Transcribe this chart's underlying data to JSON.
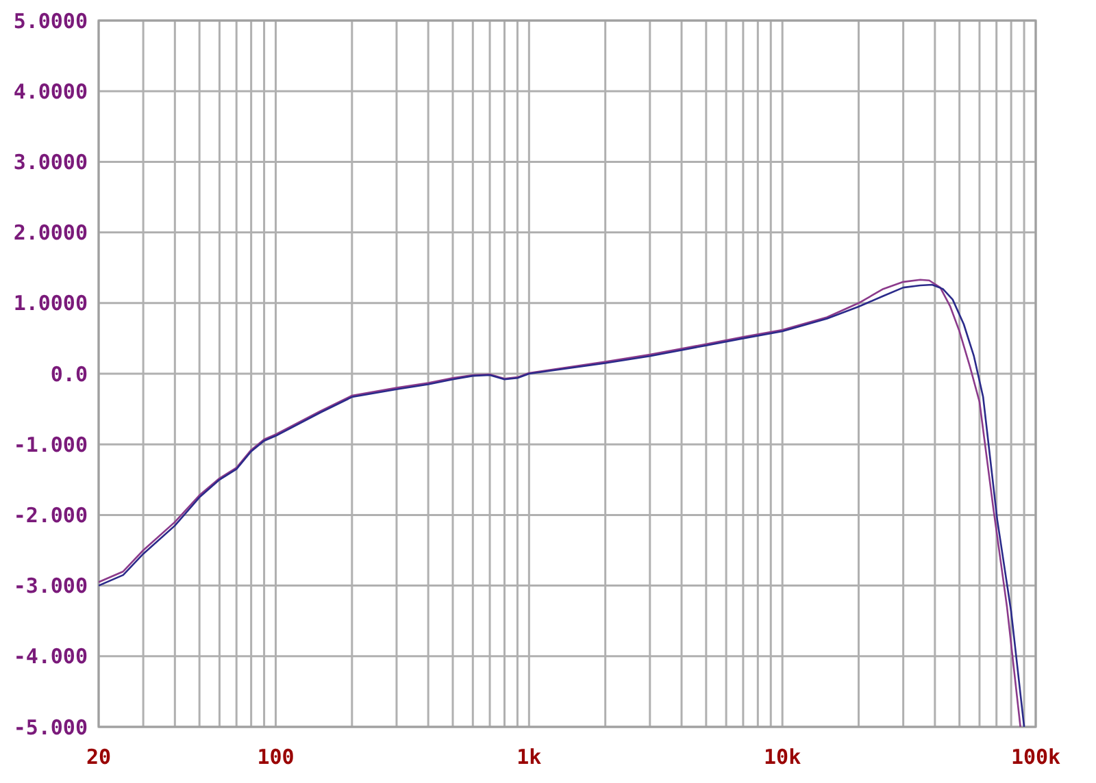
{
  "chart_data": {
    "type": "line",
    "log": "x",
    "grid": true,
    "xlim": [
      20,
      100000
    ],
    "ylim": [
      -5,
      5
    ],
    "xticks": [
      {
        "value": 20,
        "label": "20"
      },
      {
        "value": 30,
        "label": null
      },
      {
        "value": 40,
        "label": null
      },
      {
        "value": 50,
        "label": null
      },
      {
        "value": 60,
        "label": null
      },
      {
        "value": 70,
        "label": null
      },
      {
        "value": 80,
        "label": null
      },
      {
        "value": 90,
        "label": null
      },
      {
        "value": 100,
        "label": "100"
      },
      {
        "value": 200,
        "label": null
      },
      {
        "value": 300,
        "label": null
      },
      {
        "value": 400,
        "label": null
      },
      {
        "value": 500,
        "label": null
      },
      {
        "value": 600,
        "label": null
      },
      {
        "value": 700,
        "label": null
      },
      {
        "value": 800,
        "label": null
      },
      {
        "value": 900,
        "label": null
      },
      {
        "value": 1000,
        "label": "1k"
      },
      {
        "value": 2000,
        "label": null
      },
      {
        "value": 3000,
        "label": null
      },
      {
        "value": 4000,
        "label": null
      },
      {
        "value": 5000,
        "label": null
      },
      {
        "value": 6000,
        "label": null
      },
      {
        "value": 7000,
        "label": null
      },
      {
        "value": 8000,
        "label": null
      },
      {
        "value": 9000,
        "label": null
      },
      {
        "value": 10000,
        "label": "10k"
      },
      {
        "value": 20000,
        "label": null
      },
      {
        "value": 30000,
        "label": null
      },
      {
        "value": 40000,
        "label": null
      },
      {
        "value": 50000,
        "label": null
      },
      {
        "value": 60000,
        "label": null
      },
      {
        "value": 70000,
        "label": null
      },
      {
        "value": 80000,
        "label": null
      },
      {
        "value": 90000,
        "label": null
      },
      {
        "value": 100000,
        "label": "100k"
      }
    ],
    "yticks": [
      {
        "value": 5,
        "label": "5.0000"
      },
      {
        "value": 4,
        "label": "4.0000"
      },
      {
        "value": 3,
        "label": "3.0000"
      },
      {
        "value": 2,
        "label": "2.0000"
      },
      {
        "value": 1,
        "label": "1.0000"
      },
      {
        "value": 0,
        "label": "0.0"
      },
      {
        "value": -1,
        "label": "-1.000"
      },
      {
        "value": -2,
        "label": "-2.000"
      },
      {
        "value": -3,
        "label": "-3.000"
      },
      {
        "value": -4,
        "label": "-4.000"
      },
      {
        "value": -5,
        "label": "-5.000"
      }
    ],
    "series": [
      {
        "color": "#8b3a8b",
        "x": [
          20,
          25,
          30,
          40,
          50,
          60,
          70,
          80,
          90,
          100,
          150,
          200,
          300,
          400,
          500,
          600,
          700,
          800,
          900,
          1000,
          2000,
          3000,
          5000,
          7000,
          10000,
          15000,
          20000,
          25000,
          30000,
          35000,
          38000,
          42000,
          46000,
          50000,
          55000,
          60000,
          68000,
          77000,
          87000
        ],
        "values": [
          -2.95,
          -2.8,
          -2.5,
          -2.1,
          -1.72,
          -1.48,
          -1.33,
          -1.08,
          -0.93,
          -0.86,
          -0.53,
          -0.31,
          -0.2,
          -0.13,
          -0.06,
          -0.02,
          -0.01,
          -0.07,
          -0.05,
          0.01,
          0.17,
          0.27,
          0.42,
          0.52,
          0.62,
          0.8,
          1.0,
          1.2,
          1.3,
          1.33,
          1.32,
          1.22,
          0.95,
          0.6,
          0.1,
          -0.4,
          -1.9,
          -3.3,
          -5.0
        ]
      },
      {
        "color": "#2a2a8a",
        "x": [
          20,
          25,
          30,
          40,
          50,
          60,
          70,
          80,
          90,
          100,
          150,
          200,
          300,
          400,
          500,
          600,
          700,
          800,
          900,
          1000,
          2000,
          3000,
          5000,
          7000,
          10000,
          15000,
          20000,
          25000,
          30000,
          35000,
          39000,
          43000,
          47000,
          52000,
          57000,
          62000,
          70500,
          80000,
          90000
        ],
        "values": [
          -3.0,
          -2.85,
          -2.55,
          -2.15,
          -1.75,
          -1.5,
          -1.35,
          -1.1,
          -0.95,
          -0.88,
          -0.55,
          -0.33,
          -0.22,
          -0.15,
          -0.08,
          -0.03,
          -0.02,
          -0.08,
          -0.06,
          0.0,
          0.15,
          0.25,
          0.4,
          0.5,
          0.6,
          0.78,
          0.95,
          1.1,
          1.22,
          1.25,
          1.26,
          1.2,
          1.05,
          0.7,
          0.25,
          -0.33,
          -2.07,
          -3.37,
          -5.0
        ]
      }
    ]
  }
}
